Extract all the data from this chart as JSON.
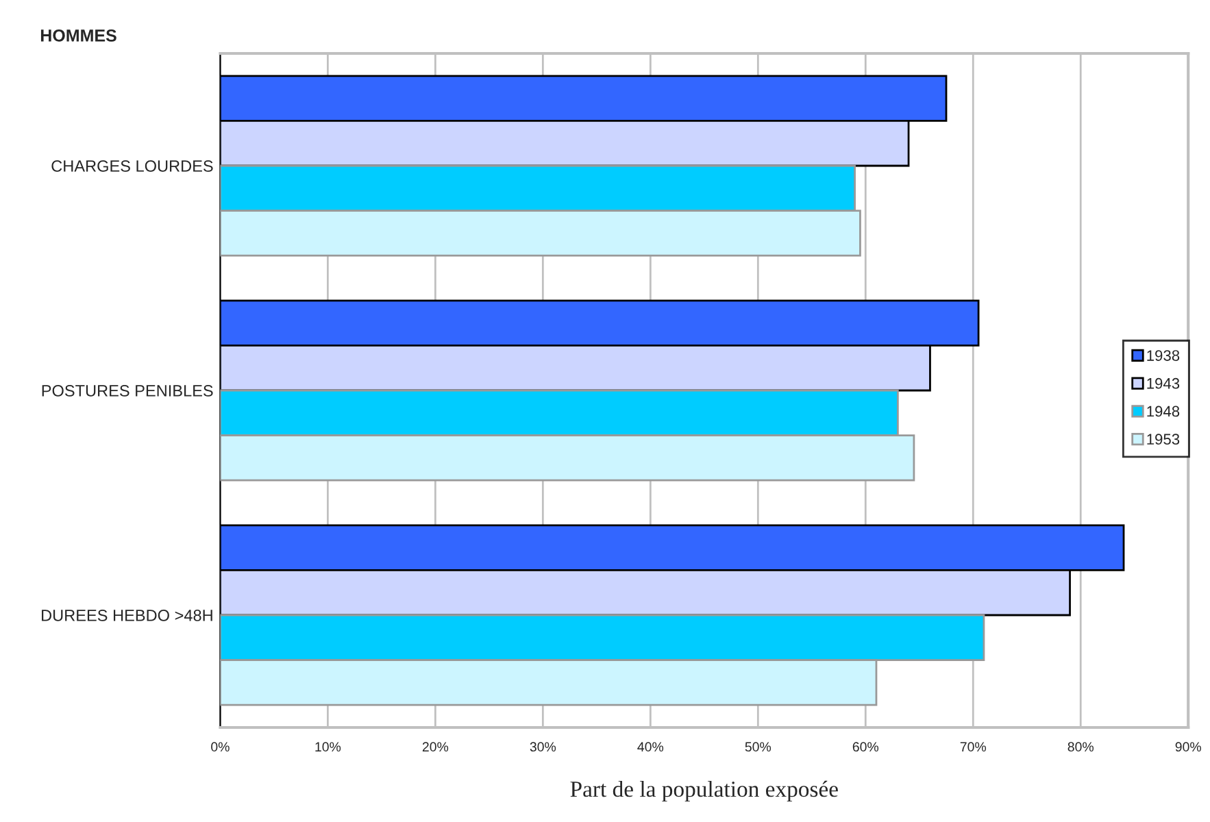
{
  "chart_data": {
    "type": "bar",
    "orientation": "horizontal",
    "title": "HOMMES",
    "xlabel": "Part de la population exposée",
    "categories": [
      "CHARGES LOURDES",
      "POSTURES PENIBLES",
      "DUREES HEBDO >48H"
    ],
    "series": [
      {
        "name": "1938",
        "color": "#3366ff",
        "values": [
          67.5,
          70.5,
          84
        ]
      },
      {
        "name": "1943",
        "color": "#ccd5ff",
        "values": [
          64,
          66,
          79
        ]
      },
      {
        "name": "1948",
        "color": "#00ccff",
        "values": [
          59,
          63,
          71
        ]
      },
      {
        "name": "1953",
        "color": "#ccf5ff",
        "values": [
          59.5,
          64.5,
          61
        ]
      }
    ],
    "xlim": [
      0,
      90
    ],
    "xticks": [
      {
        "value": 0,
        "label": "0%"
      },
      {
        "value": 10,
        "label": "10%"
      },
      {
        "value": 20,
        "label": "20%"
      },
      {
        "value": 30,
        "label": "30%"
      },
      {
        "value": 40,
        "label": "40%"
      },
      {
        "value": 50,
        "label": "50%"
      },
      {
        "value": 60,
        "label": "60%"
      },
      {
        "value": 70,
        "label": "70%"
      },
      {
        "value": 80,
        "label": "80%"
      },
      {
        "value": 90,
        "label": "90%"
      }
    ],
    "grid": "x",
    "legend": "right"
  }
}
